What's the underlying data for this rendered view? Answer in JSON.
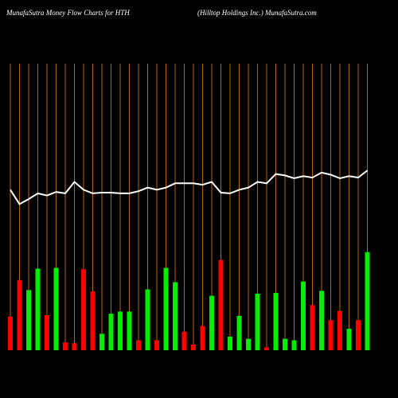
{
  "chart_data": {
    "type": "bar-line",
    "title": "MunafaSutra  Money Flow  Charts for HTH",
    "subtitle": "(Hilltop Holdings Inc.) MunafaSutra.com",
    "ylim": [
      0,
      400
    ],
    "grid": true,
    "grid_color": "#b8650a",
    "series": [
      {
        "type": "bar",
        "values": [
          47,
          98,
          84,
          114,
          49,
          115,
          11,
          10,
          113,
          82,
          23,
          51,
          54,
          54,
          14,
          85,
          14,
          115,
          95,
          26,
          8,
          34,
          76,
          126,
          19,
          48,
          16,
          79,
          4,
          80,
          16,
          14,
          96,
          63,
          83,
          42,
          55,
          30,
          42,
          137
        ],
        "colors": [
          "#ff0000",
          "#ff0000",
          "#00ee00",
          "#00ee00",
          "#ff0000",
          "#00ee00",
          "#ff0000",
          "#ff0000",
          "#ff0000",
          "#ff0000",
          "#00ee00",
          "#00ee00",
          "#00ee00",
          "#00ee00",
          "#ff0000",
          "#00ee00",
          "#ff0000",
          "#00ee00",
          "#00ee00",
          "#ff0000",
          "#ff0000",
          "#ff0000",
          "#00ee00",
          "#ff0000",
          "#00ee00",
          "#00ee00",
          "#00ee00",
          "#00ee00",
          "#ff0000",
          "#00ee00",
          "#00ee00",
          "#00ee00",
          "#00ee00",
          "#ff0000",
          "#00ee00",
          "#ff0000",
          "#ff0000",
          "#00ee00",
          "#ff0000",
          "#00ee00"
        ]
      },
      {
        "type": "line",
        "color": "#ffffff",
        "values": [
          224,
          204,
          211,
          219,
          216,
          221,
          219,
          235,
          224,
          219,
          220,
          220,
          219,
          219,
          222,
          227,
          224,
          227,
          233,
          233,
          233,
          231,
          235,
          220,
          219,
          224,
          227,
          235,
          233,
          246,
          244,
          240,
          243,
          241,
          248,
          245,
          240,
          243,
          241,
          251
        ]
      }
    ]
  }
}
